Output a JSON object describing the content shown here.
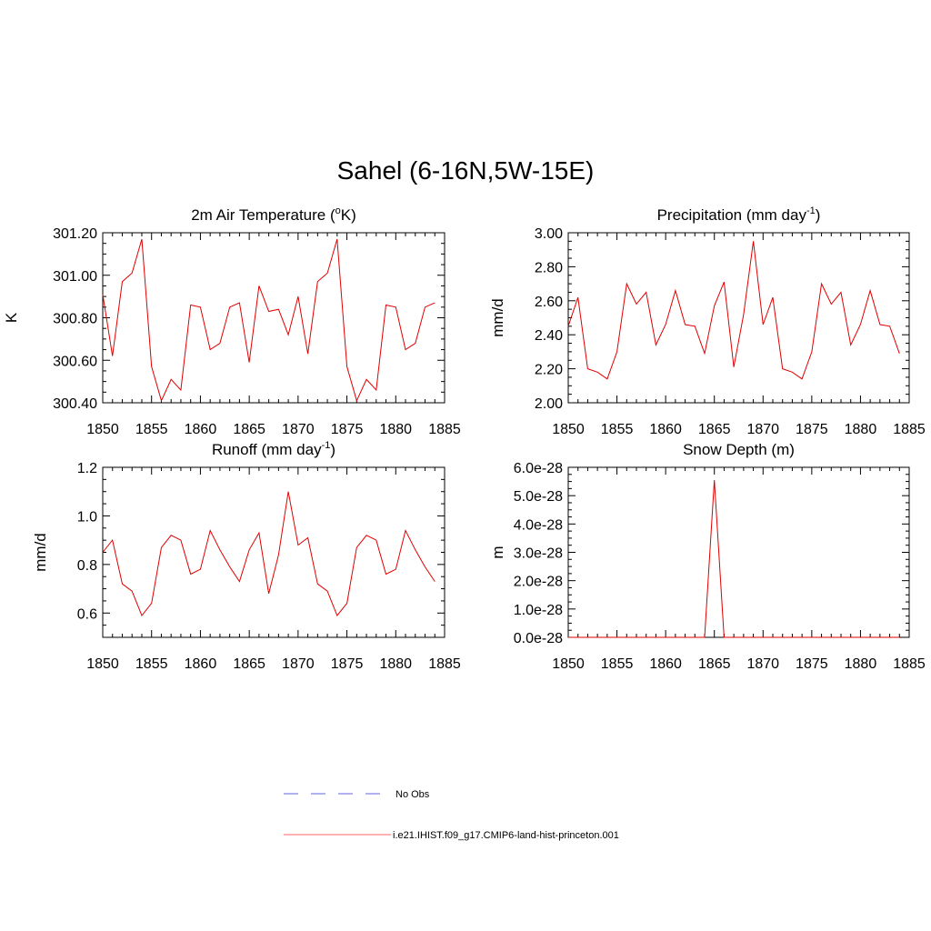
{
  "title": "Sahel (6-16N,5W-15E)",
  "legend": [
    {
      "label": "No Obs",
      "color": "#9999ee",
      "style": "dashed"
    },
    {
      "label": "i.e21.IHIST.f09_g17.CMIP6-land-hist-princeton.001",
      "color": "#ff6666",
      "style": "solid"
    }
  ],
  "series_color": "#e00000",
  "chart_data": [
    {
      "type": "line",
      "title": "2m Air Temperature (",
      "title_sup": "o",
      "title_tail": "K)",
      "ylabel": "K",
      "xlim": [
        1850,
        1885
      ],
      "ylim": [
        300.4,
        301.2
      ],
      "xticks": [
        1850,
        1855,
        1860,
        1865,
        1870,
        1875,
        1880,
        1885
      ],
      "yticks": [
        300.4,
        300.6,
        300.8,
        301.0,
        301.2
      ],
      "ytick_labels": [
        "300.40",
        "300.60",
        "300.80",
        "301.00",
        "301.20"
      ],
      "x": [
        1850,
        1851,
        1852,
        1853,
        1854,
        1855,
        1856,
        1857,
        1858,
        1859,
        1860,
        1861,
        1862,
        1863,
        1864,
        1865,
        1866,
        1867,
        1868,
        1869,
        1870,
        1871,
        1872,
        1873,
        1874,
        1875,
        1876,
        1877,
        1878,
        1879,
        1880,
        1881,
        1882,
        1883,
        1884
      ],
      "values": [
        300.91,
        300.62,
        300.97,
        301.01,
        301.17,
        300.57,
        300.41,
        300.51,
        300.46,
        300.86,
        300.85,
        300.65,
        300.68,
        300.85,
        300.87,
        300.59,
        300.95,
        300.83,
        300.84,
        300.72,
        300.9,
        300.63,
        300.97,
        301.01,
        301.17,
        300.57,
        300.41,
        300.51,
        300.46,
        300.86,
        300.85,
        300.65,
        300.68,
        300.85,
        300.87
      ]
    },
    {
      "type": "line",
      "title": "Precipitation (mm day",
      "title_sup": "-1",
      "title_tail": ")",
      "ylabel": "mm/d",
      "xlim": [
        1850,
        1885
      ],
      "ylim": [
        2.0,
        3.0
      ],
      "xticks": [
        1850,
        1855,
        1860,
        1865,
        1870,
        1875,
        1880,
        1885
      ],
      "yticks": [
        2.0,
        2.2,
        2.4,
        2.6,
        2.8,
        3.0
      ],
      "ytick_labels": [
        "2.00",
        "2.20",
        "2.40",
        "2.60",
        "2.80",
        "3.00"
      ],
      "x": [
        1850,
        1851,
        1852,
        1853,
        1854,
        1855,
        1856,
        1857,
        1858,
        1859,
        1860,
        1861,
        1862,
        1863,
        1864,
        1865,
        1866,
        1867,
        1868,
        1869,
        1870,
        1871,
        1872,
        1873,
        1874,
        1875,
        1876,
        1877,
        1878,
        1879,
        1880,
        1881,
        1882,
        1883,
        1884
      ],
      "values": [
        2.45,
        2.62,
        2.2,
        2.18,
        2.14,
        2.3,
        2.7,
        2.58,
        2.65,
        2.34,
        2.46,
        2.66,
        2.46,
        2.45,
        2.29,
        2.57,
        2.71,
        2.21,
        2.52,
        2.95,
        2.46,
        2.62,
        2.2,
        2.18,
        2.14,
        2.3,
        2.7,
        2.58,
        2.65,
        2.34,
        2.46,
        2.66,
        2.46,
        2.45,
        2.29
      ]
    },
    {
      "type": "line",
      "title": "Runoff (mm day",
      "title_sup": "-1",
      "title_tail": ")",
      "ylabel": "mm/d",
      "xlim": [
        1850,
        1885
      ],
      "ylim": [
        0.5,
        1.2
      ],
      "xticks": [
        1850,
        1855,
        1860,
        1865,
        1870,
        1875,
        1880,
        1885
      ],
      "yticks": [
        0.6,
        0.8,
        1.0,
        1.2
      ],
      "ytick_labels": [
        "0.6",
        "0.8",
        "1.0",
        "1.2"
      ],
      "x": [
        1850,
        1851,
        1852,
        1853,
        1854,
        1855,
        1856,
        1857,
        1858,
        1859,
        1860,
        1861,
        1862,
        1863,
        1864,
        1865,
        1866,
        1867,
        1868,
        1869,
        1870,
        1871,
        1872,
        1873,
        1874,
        1875,
        1876,
        1877,
        1878,
        1879,
        1880,
        1881,
        1882,
        1883,
        1884
      ],
      "values": [
        0.85,
        0.9,
        0.72,
        0.69,
        0.59,
        0.64,
        0.87,
        0.92,
        0.9,
        0.76,
        0.78,
        0.94,
        0.86,
        0.79,
        0.73,
        0.86,
        0.93,
        0.68,
        0.84,
        1.1,
        0.88,
        0.91,
        0.72,
        0.69,
        0.59,
        0.64,
        0.87,
        0.92,
        0.9,
        0.76,
        0.78,
        0.94,
        0.86,
        0.79,
        0.73
      ]
    },
    {
      "type": "line",
      "title": "Snow Depth (m)",
      "title_sup": "",
      "title_tail": "",
      "ylabel": "m",
      "xlim": [
        1850,
        1885
      ],
      "ylim": [
        0.0,
        6.0
      ],
      "xticks": [
        1850,
        1855,
        1860,
        1865,
        1870,
        1875,
        1880,
        1885
      ],
      "yticks": [
        0.0,
        1.0,
        2.0,
        3.0,
        4.0,
        5.0,
        6.0
      ],
      "ytick_labels": [
        "0.0e-28",
        "1.0e-28",
        "2.0e-28",
        "3.0e-28",
        "4.0e-28",
        "5.0e-28",
        "6.0e-28"
      ],
      "unit_note": "values in units of 1e-28 m",
      "x": [
        1850,
        1851,
        1852,
        1853,
        1854,
        1855,
        1856,
        1857,
        1858,
        1859,
        1860,
        1861,
        1862,
        1863,
        1864,
        1865,
        1866,
        1867,
        1868,
        1869,
        1870,
        1871,
        1872,
        1873,
        1874,
        1875,
        1876,
        1877,
        1878,
        1879,
        1880,
        1881,
        1882,
        1883,
        1884
      ],
      "values": [
        0,
        0,
        0,
        0,
        0,
        0,
        0,
        0,
        0,
        0,
        0,
        0,
        0,
        0,
        0,
        5.55,
        0,
        0,
        0,
        0,
        0,
        0,
        0,
        0,
        0,
        0,
        0,
        0,
        0,
        0,
        0,
        0,
        0,
        0,
        0
      ]
    }
  ]
}
